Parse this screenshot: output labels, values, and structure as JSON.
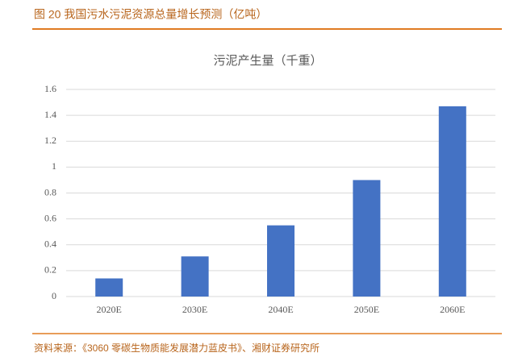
{
  "figure_title": "图 20 我国污水污泥资源总量增长预测（亿吨）",
  "source": "资料来源：《3060 零碳生物质能发展潜力蓝皮书》、湘财证券研究所",
  "chart_data": {
    "type": "bar",
    "title": "污泥产生量（千重）",
    "categories": [
      "2020E",
      "2030E",
      "2040E",
      "2050E",
      "2060E"
    ],
    "values": [
      0.14,
      0.31,
      0.55,
      0.9,
      1.47
    ],
    "color": "#4472c4",
    "ylim": [
      0,
      1.6
    ],
    "yticks": [
      0,
      0.2,
      0.4,
      0.6,
      0.8,
      1,
      1.2,
      1.4,
      1.6
    ],
    "grid": true
  }
}
